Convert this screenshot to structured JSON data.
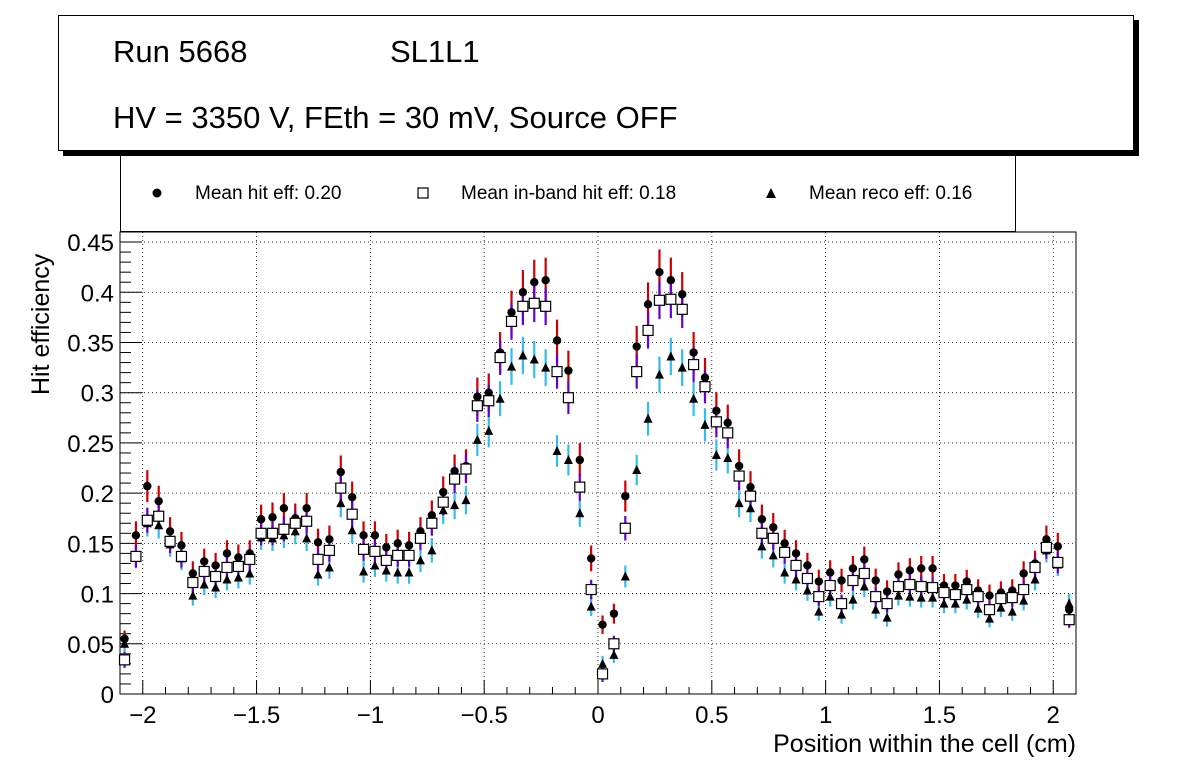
{
  "header": {
    "run": "Run 5668",
    "layer": "SL1L1",
    "conditions": "HV = 3350 V, FEth = 30 mV, Source OFF"
  },
  "legend": {
    "hit_label": "Mean hit  eff: 0.20",
    "inband_label": "Mean in-band hit eff: 0.18",
    "reco_label": "Mean reco eff: 0.16"
  },
  "colors": {
    "hit_error": "#cc0000",
    "inband_error": "#6600cc",
    "reco_error": "#33bbee",
    "marker": "#000000"
  },
  "chart_data": {
    "type": "scatter",
    "title": "Run 5668 SL1L1 HV = 3350 V, FEth = 30 mV, Source OFF",
    "xlabel": "Position within the cell (cm)",
    "ylabel": "Hit efficiency",
    "xlim": [
      -2.1,
      2.1
    ],
    "ylim": [
      0,
      0.46
    ],
    "grid": true,
    "x_ticks": [
      "−2",
      "−1.5",
      "−1",
      "−0.5",
      "0",
      "0.5",
      "1",
      "1.5",
      "2"
    ],
    "y_ticks": [
      "0",
      "0.05",
      "0.1",
      "0.15",
      "0.2",
      "0.25",
      "0.3",
      "0.35",
      "0.4",
      "0.45"
    ],
    "x": [
      -2.08,
      -2.03,
      -1.98,
      -1.93,
      -1.88,
      -1.83,
      -1.78,
      -1.73,
      -1.68,
      -1.63,
      -1.58,
      -1.53,
      -1.48,
      -1.43,
      -1.38,
      -1.33,
      -1.28,
      -1.23,
      -1.18,
      -1.13,
      -1.08,
      -1.03,
      -0.98,
      -0.93,
      -0.88,
      -0.83,
      -0.78,
      -0.73,
      -0.68,
      -0.63,
      -0.58,
      -0.53,
      -0.48,
      -0.43,
      -0.38,
      -0.33,
      -0.28,
      -0.23,
      -0.18,
      -0.13,
      -0.08,
      -0.03,
      0.02,
      0.07,
      0.12,
      0.17,
      0.22,
      0.27,
      0.32,
      0.37,
      0.42,
      0.47,
      0.52,
      0.57,
      0.62,
      0.67,
      0.72,
      0.77,
      0.82,
      0.87,
      0.92,
      0.97,
      1.02,
      1.07,
      1.12,
      1.17,
      1.22,
      1.27,
      1.32,
      1.37,
      1.42,
      1.47,
      1.52,
      1.57,
      1.62,
      1.67,
      1.72,
      1.77,
      1.82,
      1.87,
      1.92,
      1.97,
      2.02,
      2.07
    ],
    "series": [
      {
        "name": "Mean hit  eff: 0.20",
        "marker": "circle",
        "values": [
          0.055,
          0.158,
          0.207,
          0.192,
          0.162,
          0.148,
          0.12,
          0.132,
          0.128,
          0.14,
          0.136,
          0.14,
          0.174,
          0.176,
          0.185,
          0.175,
          0.185,
          0.151,
          0.154,
          0.221,
          0.196,
          0.158,
          0.158,
          0.146,
          0.15,
          0.148,
          0.162,
          0.178,
          0.201,
          0.222,
          0.227,
          0.296,
          0.3,
          0.34,
          0.38,
          0.4,
          0.41,
          0.412,
          0.352,
          0.322,
          0.233,
          0.135,
          0.069,
          0.08,
          0.197,
          0.346,
          0.388,
          0.42,
          0.412,
          0.398,
          0.34,
          0.315,
          0.282,
          0.27,
          0.227,
          0.206,
          0.174,
          0.166,
          0.15,
          0.14,
          0.128,
          0.112,
          0.121,
          0.113,
          0.125,
          0.134,
          0.113,
          0.102,
          0.119,
          0.123,
          0.125,
          0.125,
          0.108,
          0.108,
          0.112,
          0.103,
          0.098,
          0.101,
          0.103,
          0.12,
          0.13,
          0.154,
          0.147,
          0.084
        ]
      },
      {
        "name": "Mean in-band hit eff: 0.18",
        "marker": "open-square",
        "values": [
          0.034,
          0.137,
          0.173,
          0.177,
          0.152,
          0.137,
          0.111,
          0.122,
          0.117,
          0.126,
          0.127,
          0.134,
          0.16,
          0.16,
          0.164,
          0.17,
          0.172,
          0.134,
          0.143,
          0.205,
          0.179,
          0.144,
          0.142,
          0.133,
          0.138,
          0.138,
          0.155,
          0.17,
          0.191,
          0.214,
          0.224,
          0.287,
          0.292,
          0.335,
          0.371,
          0.386,
          0.389,
          0.386,
          0.321,
          0.295,
          0.206,
          0.104,
          0.02,
          0.05,
          0.165,
          0.321,
          0.362,
          0.392,
          0.393,
          0.383,
          0.328,
          0.306,
          0.271,
          0.26,
          0.217,
          0.197,
          0.16,
          0.155,
          0.141,
          0.128,
          0.115,
          0.097,
          0.108,
          0.09,
          0.113,
          0.12,
          0.097,
          0.09,
          0.107,
          0.109,
          0.107,
          0.106,
          0.101,
          0.099,
          0.104,
          0.097,
          0.084,
          0.095,
          0.096,
          0.104,
          0.126,
          0.146,
          0.131,
          0.074
        ]
      },
      {
        "name": "Mean reco eff: 0.16",
        "marker": "filled-triangle",
        "values": [
          0.05,
          0.137,
          0.17,
          0.168,
          0.149,
          0.135,
          0.098,
          0.109,
          0.106,
          0.114,
          0.116,
          0.12,
          0.156,
          0.155,
          0.158,
          0.162,
          0.155,
          0.119,
          0.126,
          0.19,
          0.163,
          0.122,
          0.128,
          0.123,
          0.121,
          0.121,
          0.133,
          0.143,
          0.183,
          0.188,
          0.193,
          0.253,
          0.262,
          0.294,
          0.326,
          0.337,
          0.333,
          0.325,
          0.242,
          0.233,
          0.18,
          0.087,
          0.03,
          0.039,
          0.117,
          0.223,
          0.274,
          0.318,
          0.336,
          0.325,
          0.294,
          0.268,
          0.238,
          0.235,
          0.19,
          0.185,
          0.147,
          0.138,
          0.121,
          0.114,
          0.103,
          0.082,
          0.097,
          0.079,
          0.094,
          0.107,
          0.084,
          0.076,
          0.098,
          0.097,
          0.096,
          0.096,
          0.09,
          0.09,
          0.094,
          0.085,
          0.075,
          0.086,
          0.082,
          0.093,
          0.114,
          0.143,
          0.129,
          0.09
        ]
      }
    ]
  }
}
